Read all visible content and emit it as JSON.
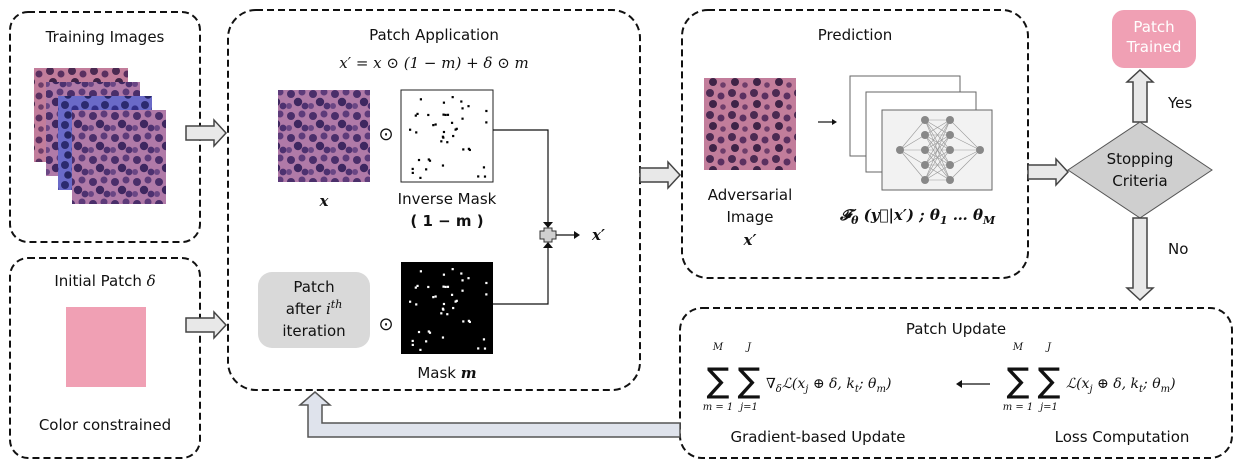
{
  "training_images": {
    "title": "Training Images"
  },
  "initial_patch": {
    "title": "Initial Patch ",
    "delta": "δ",
    "caption": "Color constrained"
  },
  "patch_application": {
    "title": "Patch Application",
    "formula": "x′ = x ⊙  (1 − m) + δ ⊙ m",
    "operator": "⊙",
    "x_label": "x",
    "inverse_mask": "Inverse Mask",
    "inverse_mask_expr": "( 1 − m )",
    "patch_label": {
      "line1": "Patch",
      "line2": "after ",
      "i": "i",
      "th": "th",
      "line3": "iteration"
    },
    "mask_label": "Mask ",
    "mask_symbol": "m",
    "output": "x′"
  },
  "prediction": {
    "title": "Prediction",
    "image_label": [
      "Adversarial",
      "Image"
    ],
    "image_symbol": "x′",
    "model": [
      "𝓕",
      "θ",
      " (y⃗|x′) ; θ",
      "1",
      " … θ",
      "M"
    ]
  },
  "patch_trained": [
    "Patch",
    "Trained"
  ],
  "decision": {
    "label": [
      "Stopping",
      "Criteria"
    ],
    "yes": "Yes",
    "no": "No"
  },
  "patch_update": {
    "title": "Patch Update",
    "sigma": "∑",
    "gradient": {
      "outer_top": "M",
      "outer_bottom": "m = 1",
      "inner_top": "J",
      "inner_bottom": "j=1",
      "expr": [
        "∇",
        "δ",
        "ℒ(x",
        "j",
        " ⊕  δ, k",
        "t",
        "; θ",
        "m",
        ")"
      ],
      "caption": "Gradient-based Update"
    },
    "loss": {
      "outer_top": "M",
      "outer_bottom": "m = 1",
      "inner_top": "J",
      "inner_bottom": "j=1",
      "expr": [
        "ℒ(x",
        "j",
        " ⊕  δ, k",
        "t",
        "; θ",
        "m",
        ")"
      ],
      "caption": "Loss Computation"
    }
  }
}
